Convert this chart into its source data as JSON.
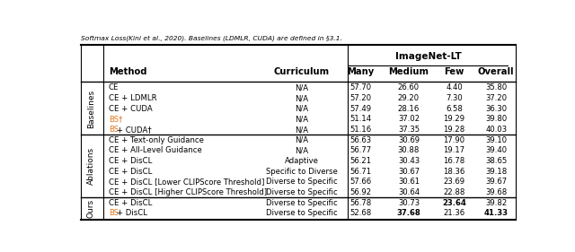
{
  "caption": "Softmax Loss(Kini et al., 2020). Baselines (LDMLR, CUDA) are defined in §3.1.",
  "sections": [
    {
      "label": "Baselines",
      "rows": [
        {
          "method_parts": [
            {
              "text": "CE",
              "color": "black"
            }
          ],
          "curriculum": "N/A",
          "many": "57.70",
          "medium": "26.60",
          "few": "4.40",
          "overall": "35.80",
          "bold_cols": []
        },
        {
          "method_parts": [
            {
              "text": "CE + LDMLR",
              "color": "black"
            }
          ],
          "curriculum": "N/A",
          "many": "57.20",
          "medium": "29.20",
          "few": "7.30",
          "overall": "37.20",
          "bold_cols": []
        },
        {
          "method_parts": [
            {
              "text": "CE + CUDA",
              "color": "black"
            }
          ],
          "curriculum": "N/A",
          "many": "57.49",
          "medium": "28.16",
          "few": "6.58",
          "overall": "36.30",
          "bold_cols": []
        },
        {
          "method_parts": [
            {
              "text": "BS†",
              "color": "#E07820"
            }
          ],
          "curriculum": "N/A",
          "many": "51.14",
          "medium": "37.02",
          "few": "19.29",
          "overall": "39.80",
          "bold_cols": []
        },
        {
          "method_parts": [
            {
              "text": "BS",
              "color": "#E07820"
            },
            {
              "text": " + CUDA†",
              "color": "black"
            }
          ],
          "curriculum": "N/A",
          "many": "51.16",
          "medium": "37.35",
          "few": "19.28",
          "overall": "40.03",
          "bold_cols": []
        }
      ]
    },
    {
      "label": "Ablations",
      "rows": [
        {
          "method_parts": [
            {
              "text": "CE + Text-only Guidance",
              "color": "black"
            }
          ],
          "curriculum": "N/A",
          "many": "56.63",
          "medium": "30.69",
          "few": "17.90",
          "overall": "39.10",
          "bold_cols": []
        },
        {
          "method_parts": [
            {
              "text": "CE + All-Level Guidance",
              "color": "black"
            }
          ],
          "curriculum": "N/A",
          "many": "56.77",
          "medium": "30.88",
          "few": "19.17",
          "overall": "39.40",
          "bold_cols": []
        },
        {
          "method_parts": [
            {
              "text": "CE + DisCL",
              "color": "black"
            }
          ],
          "curriculum": "Adaptive",
          "many": "56.21",
          "medium": "30.43",
          "few": "16.78",
          "overall": "38.65",
          "bold_cols": []
        },
        {
          "method_parts": [
            {
              "text": "CE + DisCL",
              "color": "black"
            }
          ],
          "curriculum": "Specific to Diverse",
          "many": "56.71",
          "medium": "30.67",
          "few": "18.36",
          "overall": "39.18",
          "bold_cols": []
        },
        {
          "method_parts": [
            {
              "text": "CE + DisCL [Lower CLIPScore Threshold]",
              "color": "black"
            }
          ],
          "curriculum": "Diverse to Specific",
          "many": "57.66",
          "medium": "30.61",
          "few": "23.69",
          "overall": "39.67",
          "bold_cols": []
        },
        {
          "method_parts": [
            {
              "text": "CE + DisCL [Higher CLIPScore Threshold]",
              "color": "black"
            }
          ],
          "curriculum": "Diverse to Specific",
          "many": "56.92",
          "medium": "30.64",
          "few": "22.88",
          "overall": "39.68",
          "bold_cols": []
        }
      ]
    },
    {
      "label": "Ours",
      "rows": [
        {
          "method_parts": [
            {
              "text": "CE + DisCL",
              "color": "black"
            }
          ],
          "curriculum": "Diverse to Specific",
          "many": "56.78",
          "medium": "30.73",
          "few": "23.64",
          "overall": "39.82",
          "bold_cols": [
            "few"
          ]
        },
        {
          "method_parts": [
            {
              "text": "BS",
              "color": "#E07820"
            },
            {
              "text": " + DisCL",
              "color": "black"
            }
          ],
          "curriculum": "Diverse to Specific",
          "many": "52.68",
          "medium": "37.68",
          "few": "21.36",
          "overall": "41.33",
          "bold_cols": [
            "medium",
            "overall"
          ]
        }
      ]
    }
  ],
  "col_x": {
    "section_label": 0.043,
    "method": 0.082,
    "curriculum": 0.515,
    "many": 0.648,
    "medium": 0.756,
    "few": 0.858,
    "overall": 0.952
  },
  "orange_color": "#E07820",
  "bg_color": "white"
}
